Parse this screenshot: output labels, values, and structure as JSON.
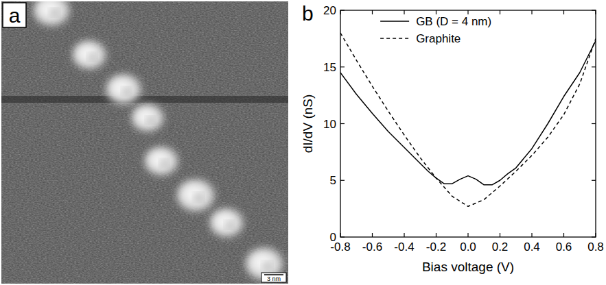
{
  "image_panel": {
    "label": "a",
    "scale_bar": "3 nm"
  },
  "chart_panel_label": "b",
  "chart_data": {
    "type": "line",
    "x_label": "Bias voltage (V)",
    "y_label": "dI/dV (nS)",
    "xlim": [
      -0.8,
      0.8
    ],
    "ylim": [
      0,
      20
    ],
    "xticks": [
      -0.8,
      -0.6,
      -0.4,
      -0.2,
      {
        "value": 0,
        "label": "0.0"
      },
      0.2,
      0.4,
      0.6,
      0.8
    ],
    "yticks": [
      0,
      5,
      10,
      15,
      20
    ],
    "legend": "upper center",
    "series": [
      {
        "name": "GB (D = 4 nm)",
        "color": "#000000",
        "line_style": "solid",
        "x": [
          -0.8,
          -0.7,
          -0.6,
          -0.5,
          -0.4,
          -0.3,
          -0.25,
          -0.2,
          -0.15,
          -0.1,
          -0.05,
          0,
          0.05,
          0.1,
          0.15,
          0.2,
          0.25,
          0.3,
          0.4,
          0.5,
          0.6,
          0.7,
          0.8
        ],
        "values": [
          14.5,
          12.6,
          10.9,
          9.3,
          7.9,
          6.5,
          5.8,
          5.2,
          4.7,
          4.7,
          5.1,
          5.4,
          5.1,
          4.6,
          4.6,
          5.0,
          5.6,
          6.1,
          7.8,
          10.0,
          12.4,
          14.5,
          17.3
        ]
      },
      {
        "name": "Graphite",
        "color": "#000000",
        "line_style": "dashed",
        "x": [
          -0.8,
          -0.7,
          -0.6,
          -0.5,
          -0.4,
          -0.3,
          -0.2,
          -0.1,
          0,
          0.1,
          0.2,
          0.3,
          0.4,
          0.5,
          0.6,
          0.7,
          0.8
        ],
        "values": [
          18.0,
          15.6,
          13.3,
          11.1,
          9.0,
          7.0,
          5.2,
          3.6,
          2.7,
          3.3,
          4.5,
          5.8,
          7.2,
          8.8,
          10.8,
          13.5,
          17.5
        ]
      }
    ]
  }
}
